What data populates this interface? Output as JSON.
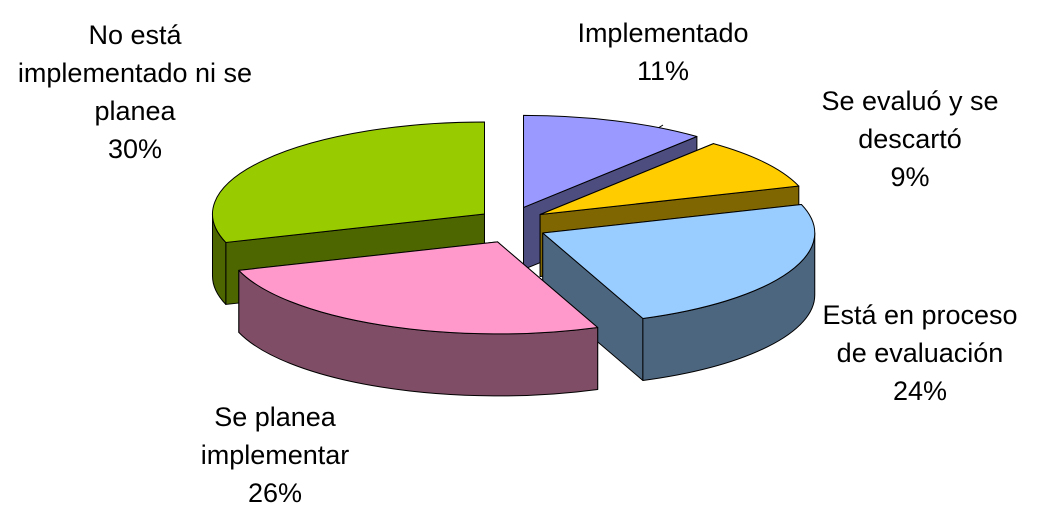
{
  "chart_data": {
    "type": "pie3d",
    "categories": [
      "Implementado",
      "Se evaluó y se descartó",
      "Está en proceso de evaluación",
      "Se planea implementar",
      "No está implementado ni se planea"
    ],
    "values": [
      11,
      9,
      24,
      26,
      30
    ],
    "value_labels": [
      "11%",
      "9%",
      "24%",
      "26%",
      "30%"
    ],
    "colors": [
      "#9999ff",
      "#ffcc00",
      "#99ccff",
      "#ff99cc",
      "#99cc00"
    ]
  }
}
